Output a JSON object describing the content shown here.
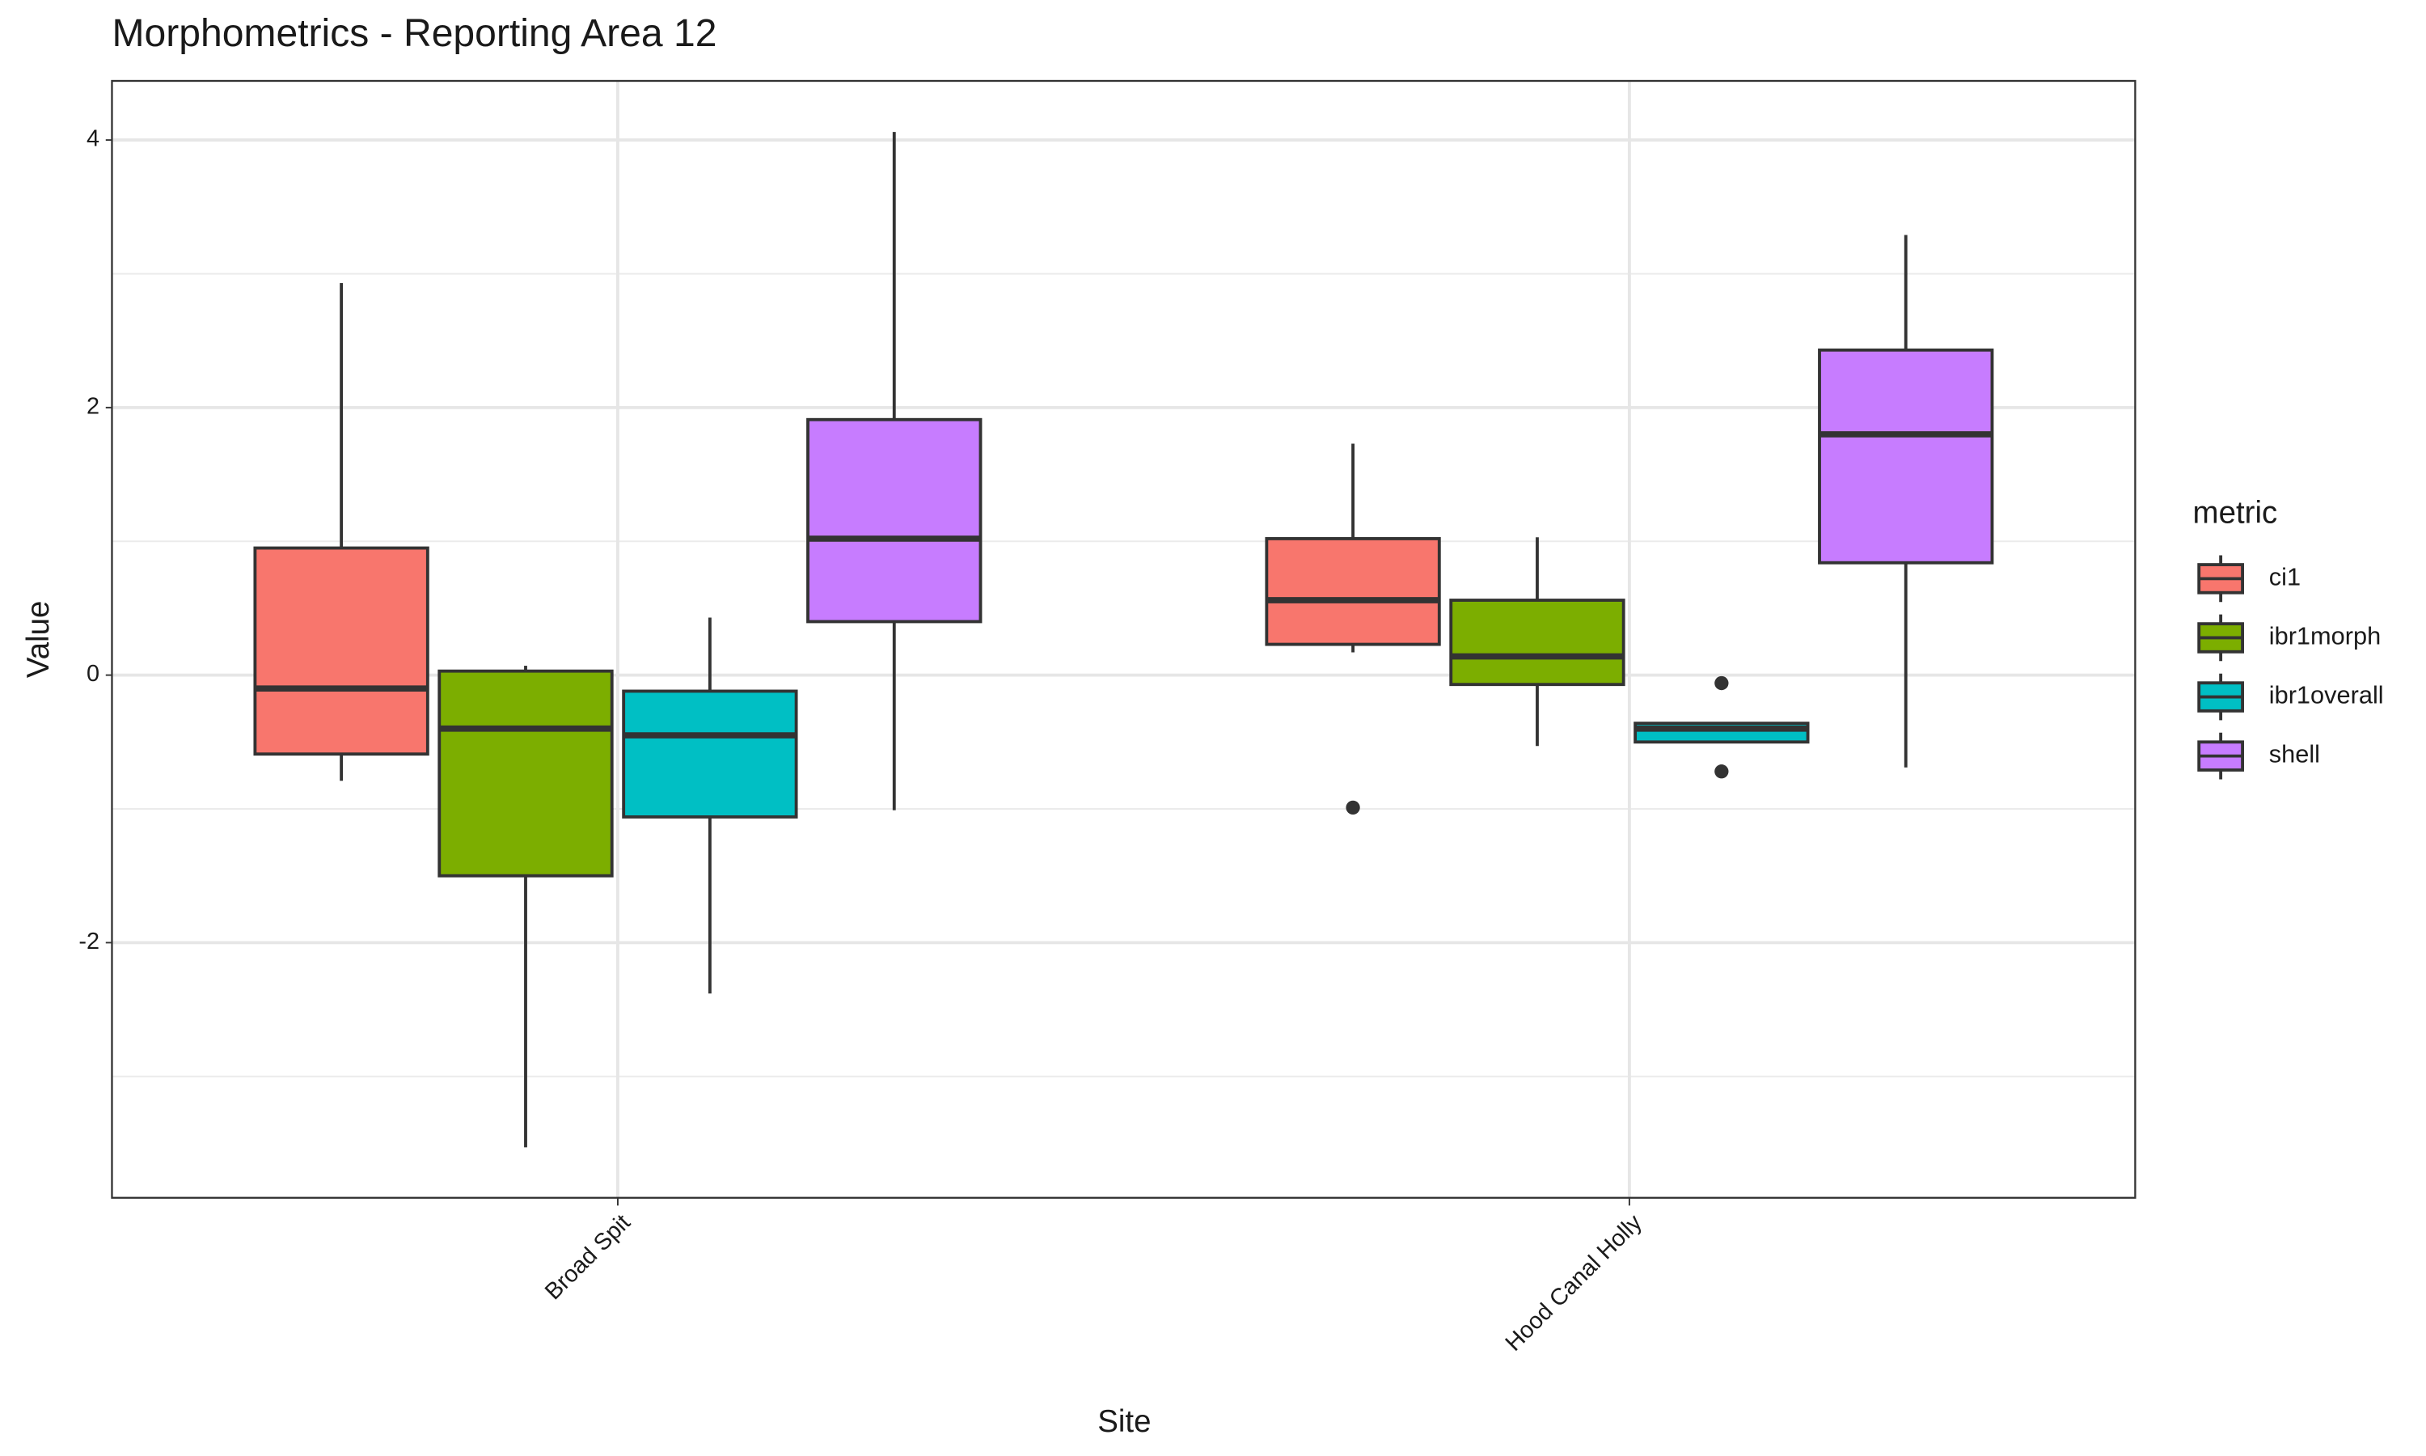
{
  "chart_data": {
    "type": "boxplot",
    "title": "Morphometrics - Reporting Area 12",
    "x_label": "Site",
    "y_label": "Value",
    "legend_title": "metric",
    "legend_position": "right",
    "grid": true,
    "categories": [
      "Broad Spit",
      "Hood Canal Holly"
    ],
    "ylim": [
      -3.907,
      4.442
    ],
    "yticks": [
      -2,
      0,
      2,
      4
    ],
    "series": [
      {
        "name": "ci1",
        "color": "#f8766d",
        "values": [
          {
            "min": -0.79,
            "q1": -0.59,
            "median": -0.1,
            "q3": 0.95,
            "max": 2.93,
            "outliers": []
          },
          {
            "min": 0.17,
            "q1": 0.23,
            "median": 0.56,
            "q3": 1.02,
            "max": 1.73,
            "outliers": [
              -0.99
            ]
          }
        ]
      },
      {
        "name": "ibr1morph",
        "color": "#7cae00",
        "values": [
          {
            "min": -3.53,
            "q1": -1.5,
            "median": -0.4,
            "q3": 0.03,
            "max": 0.07,
            "outliers": []
          },
          {
            "min": -0.53,
            "q1": -0.07,
            "median": 0.14,
            "q3": 0.56,
            "max": 1.03,
            "outliers": []
          }
        ]
      },
      {
        "name": "ibr1overall",
        "color": "#00bfc4",
        "values": [
          {
            "min": -2.38,
            "q1": -1.06,
            "median": -0.45,
            "q3": -0.12,
            "max": 0.43,
            "outliers": []
          },
          {
            "min": -0.51,
            "q1": -0.5,
            "median": -0.4,
            "q3": -0.36,
            "max": -0.36,
            "outliers": [
              -0.06,
              -0.72
            ]
          }
        ]
      },
      {
        "name": "shell",
        "color": "#c77cff",
        "values": [
          {
            "min": -1.01,
            "q1": 0.4,
            "median": 1.02,
            "q3": 1.91,
            "max": 4.06,
            "outliers": []
          },
          {
            "min": -0.69,
            "q1": 0.84,
            "median": 1.8,
            "q3": 2.43,
            "max": 3.29,
            "outliers": []
          }
        ]
      }
    ]
  }
}
